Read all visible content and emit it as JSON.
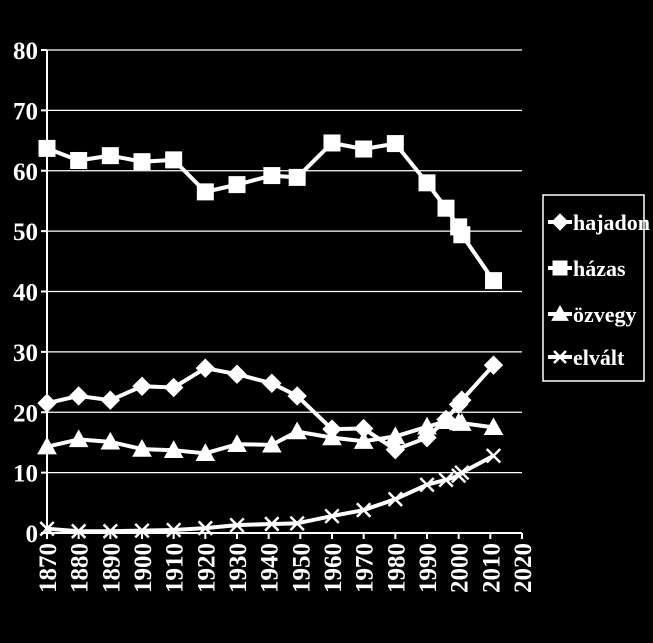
{
  "chart_data": {
    "type": "line",
    "title": "",
    "xlabel": "",
    "ylabel": "",
    "xlim": [
      1870,
      2020
    ],
    "ylim": [
      0,
      80
    ],
    "x_ticks": [
      1870,
      1880,
      1890,
      1900,
      1910,
      1920,
      1930,
      1940,
      1950,
      1960,
      1970,
      1980,
      1990,
      2000,
      2010,
      2020
    ],
    "y_ticks": [
      0,
      10,
      20,
      30,
      40,
      50,
      60,
      70,
      80
    ],
    "grid": "horizontal",
    "legend_position": "right",
    "background_color": "#000000",
    "line_color": "#ffffff",
    "series": [
      {
        "name": "hajadon",
        "marker": "diamond",
        "x": [
          1870,
          1880,
          1890,
          1900,
          1910,
          1920,
          1930,
          1941,
          1949,
          1960,
          1970,
          1980,
          1990,
          1996,
          2000,
          2001,
          2011
        ],
        "values": [
          21.5,
          22.7,
          22.0,
          24.3,
          24.1,
          27.3,
          26.3,
          24.8,
          22.7,
          17.2,
          17.3,
          13.8,
          15.8,
          18.8,
          21.3,
          22.0,
          27.8
        ]
      },
      {
        "name": "házas",
        "marker": "square",
        "x": [
          1870,
          1880,
          1890,
          1900,
          1910,
          1920,
          1930,
          1941,
          1949,
          1960,
          1970,
          1980,
          1990,
          1996,
          2000,
          2001,
          2011
        ],
        "values": [
          63.7,
          61.7,
          62.5,
          61.5,
          61.8,
          56.5,
          57.7,
          59.2,
          58.9,
          64.6,
          63.6,
          64.5,
          58.0,
          53.8,
          50.7,
          49.4,
          41.8
        ]
      },
      {
        "name": "özvegy",
        "marker": "triangle",
        "x": [
          1870,
          1880,
          1890,
          1900,
          1910,
          1920,
          1930,
          1941,
          1949,
          1960,
          1970,
          1980,
          1990,
          1996,
          2000,
          2001,
          2011
        ],
        "values": [
          14.3,
          15.5,
          15.1,
          13.9,
          13.7,
          13.2,
          14.7,
          14.6,
          16.8,
          15.8,
          15.2,
          16.0,
          17.6,
          18.5,
          18.3,
          18.2,
          17.5
        ]
      },
      {
        "name": "elvált",
        "marker": "x",
        "x": [
          1870,
          1880,
          1890,
          1900,
          1910,
          1920,
          1930,
          1941,
          1949,
          1960,
          1970,
          1980,
          1990,
          1996,
          2000,
          2001,
          2011
        ],
        "values": [
          0.7,
          0.3,
          0.3,
          0.4,
          0.5,
          0.8,
          1.3,
          1.5,
          1.6,
          2.8,
          3.8,
          5.6,
          8.0,
          8.8,
          9.5,
          10.0,
          12.8
        ]
      }
    ]
  }
}
